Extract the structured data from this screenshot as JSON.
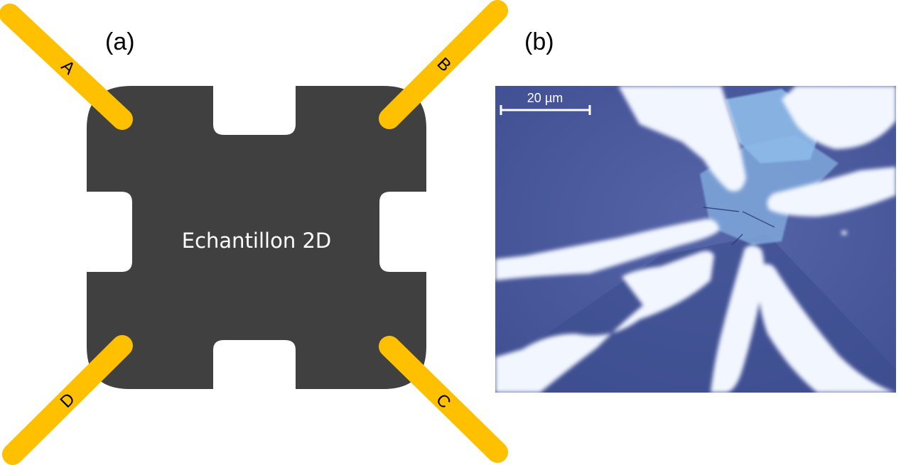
{
  "panels": {
    "a": {
      "label": "(a)"
    },
    "b": {
      "label": "(b)"
    }
  },
  "schematic": {
    "sample_label": "Echantillon 2D",
    "sample_color": "#404040",
    "lead_color": "#FFC000",
    "leads": [
      {
        "id": "A",
        "corner": "top-left"
      },
      {
        "id": "B",
        "corner": "top-right"
      },
      {
        "id": "C",
        "corner": "bottom-right"
      },
      {
        "id": "D",
        "corner": "bottom-left"
      }
    ]
  },
  "micrograph": {
    "scale_bar_label": "20 µm",
    "substrate_color": "#4A5BA0",
    "contact_color": "#F2F6FF",
    "flake_color": "#8AB8E8"
  }
}
